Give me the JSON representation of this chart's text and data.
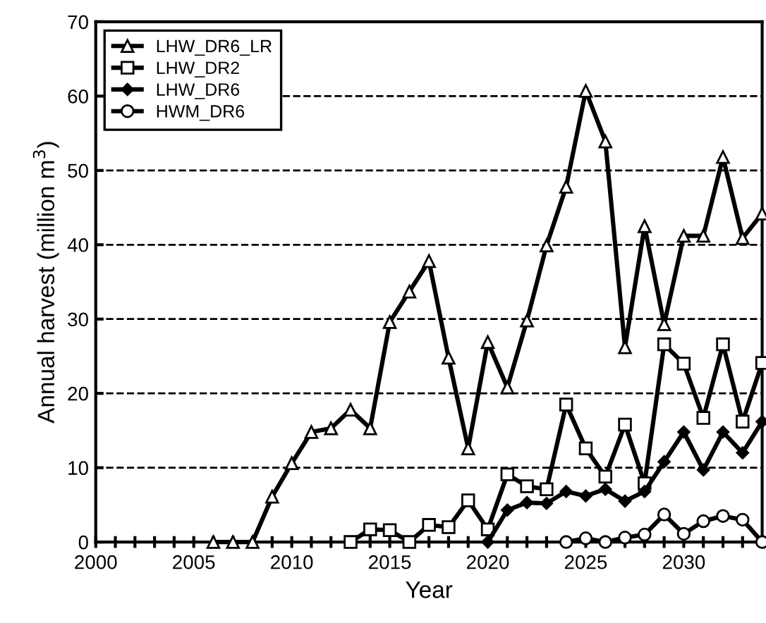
{
  "chart_data": {
    "type": "line",
    "xlabel": "Year",
    "ylabel": "Annual harvest (million m$^{3}$)",
    "xlim": [
      2000,
      2034
    ],
    "ylim": [
      0,
      70
    ],
    "xticks": [
      2000,
      {
        "value": 2001,
        "label": null
      },
      {
        "value": 2002,
        "label": null
      },
      {
        "value": 2003,
        "label": null
      },
      {
        "value": 2004,
        "label": null
      },
      2005,
      {
        "value": 2006,
        "label": null
      },
      {
        "value": 2007,
        "label": null
      },
      {
        "value": 2008,
        "label": null
      },
      {
        "value": 2009,
        "label": null
      },
      2010,
      {
        "value": 2011,
        "label": null
      },
      {
        "value": 2012,
        "label": null
      },
      {
        "value": 2013,
        "label": null
      },
      {
        "value": 2014,
        "label": null
      },
      2015,
      {
        "value": 2016,
        "label": null
      },
      {
        "value": 2017,
        "label": null
      },
      {
        "value": 2018,
        "label": null
      },
      {
        "value": 2019,
        "label": null
      },
      2020,
      {
        "value": 2021,
        "label": null
      },
      {
        "value": 2022,
        "label": null
      },
      {
        "value": 2023,
        "label": null
      },
      {
        "value": 2024,
        "label": null
      },
      2025,
      {
        "value": 2026,
        "label": null
      },
      {
        "value": 2027,
        "label": null
      },
      {
        "value": 2028,
        "label": null
      },
      {
        "value": 2029,
        "label": null
      },
      2030,
      {
        "value": 2031,
        "label": null
      },
      {
        "value": 2032,
        "label": null
      },
      {
        "value": 2033,
        "label": null
      },
      {
        "value": 2034,
        "label": null
      }
    ],
    "yticks": [
      0,
      10,
      20,
      30,
      40,
      50,
      60,
      70
    ],
    "grid": "y",
    "legend": "top left",
    "line_style": "solid",
    "series": [
      {
        "name": "LHW_DR6_LR",
        "color": "#000000",
        "marker": "triangle",
        "x": [
          2006,
          2007,
          2008,
          2009,
          2010,
          2011,
          2012,
          2013,
          2014,
          2015,
          2016,
          2017,
          2018,
          2019,
          2020,
          2021,
          2022,
          2023,
          2024,
          2025,
          2026,
          2027,
          2028,
          2029,
          2030,
          2031,
          2032,
          2033,
          2034
        ],
        "values": [
          0,
          0,
          0,
          6.1,
          10.6,
          14.8,
          15.3,
          17.8,
          15.3,
          29.6,
          33.7,
          37.8,
          24.8,
          12.6,
          26.9,
          20.8,
          29.8,
          39.9,
          47.8,
          60.7,
          53.9,
          26.2,
          42.5,
          29.3,
          41.2,
          41.2,
          51.8,
          40.9,
          44.2
        ]
      },
      {
        "name": "LHW_DR2",
        "color": "#000000",
        "marker": "square",
        "x": [
          2013,
          2014,
          2015,
          2016,
          2017,
          2018,
          2019,
          2020,
          2021,
          2022,
          2023,
          2024,
          2025,
          2026,
          2027,
          2028,
          2029,
          2030,
          2031,
          2032,
          2033,
          2034
        ],
        "values": [
          0,
          1.7,
          1.6,
          0,
          2.3,
          2,
          5.6,
          1.7,
          9.1,
          7.5,
          7.1,
          18.5,
          12.6,
          8.8,
          15.8,
          7.9,
          26.6,
          24,
          16.7,
          26.6,
          16.2,
          24.1
        ]
      },
      {
        "name": "LHW_DR6",
        "color": "#000000",
        "marker": "diamond",
        "x": [
          2020,
          2021,
          2022,
          2023,
          2024,
          2025,
          2026,
          2027,
          2028,
          2029,
          2030,
          2031,
          2032,
          2033,
          2034
        ],
        "values": [
          0,
          4.3,
          5.3,
          5.2,
          6.8,
          6.2,
          7.1,
          5.5,
          6.8,
          10.8,
          14.8,
          9.7,
          14.8,
          12,
          16.2
        ]
      },
      {
        "name": "HWM_DR6",
        "color": "#000000",
        "marker": "circle",
        "x": [
          2024,
          2025,
          2026,
          2027,
          2028,
          2029,
          2030,
          2031,
          2032,
          2033,
          2034
        ],
        "values": [
          0,
          0.5,
          0,
          0.6,
          1,
          3.7,
          1.1,
          2.8,
          3.5,
          3,
          0
        ]
      }
    ]
  }
}
